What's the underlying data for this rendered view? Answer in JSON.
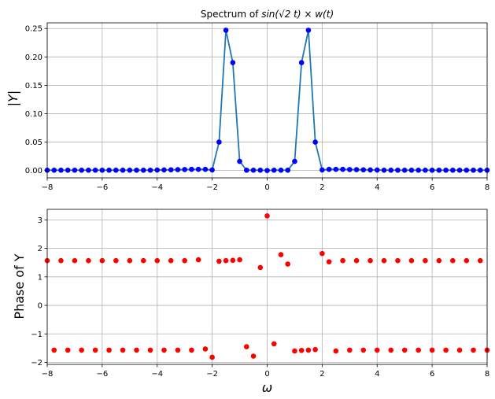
{
  "chart_data": [
    {
      "type": "line",
      "title_prefix": "Spectrum of ",
      "title_math": "sin(√2 t) × w(t)",
      "ylabel": "|Y|",
      "xlabel": "",
      "xlim": [
        -8,
        8
      ],
      "ylim": [
        -0.013,
        0.26
      ],
      "grid": true,
      "xticks": [
        -8,
        -6,
        -4,
        -2,
        0,
        2,
        4,
        6,
        8
      ],
      "xtick_labels": [
        "−8",
        "−6",
        "−4",
        "−2",
        "0",
        "2",
        "4",
        "6",
        "8"
      ],
      "yticks": [
        0.0,
        0.05,
        0.1,
        0.15,
        0.2,
        0.25
      ],
      "ytick_labels": [
        "0.00",
        "0.05",
        "0.10",
        "0.15",
        "0.20",
        "0.25"
      ],
      "series": [
        {
          "line_color": "#1f77b4",
          "marker_color": "#0000ff",
          "x": [
            -8,
            -7.75,
            -7.5,
            -7.25,
            -7,
            -6.75,
            -6.5,
            -6.25,
            -6,
            -5.75,
            -5.5,
            -5.25,
            -5,
            -4.75,
            -4.5,
            -4.25,
            -4,
            -3.75,
            -3.5,
            -3.25,
            -3,
            -2.75,
            -2.5,
            -2.25,
            -2,
            -1.75,
            -1.5,
            -1.25,
            -1,
            -0.75,
            -0.5,
            -0.25,
            0,
            0.25,
            0.5,
            0.75,
            1,
            1.25,
            1.5,
            1.75,
            2,
            2.25,
            2.5,
            2.75,
            3,
            3.25,
            3.5,
            3.75,
            4,
            4.25,
            4.5,
            4.75,
            5,
            5.25,
            5.5,
            5.75,
            6,
            6.25,
            6.5,
            6.75,
            7,
            7.25,
            7.5,
            7.75,
            8
          ],
          "y": [
            0.0005,
            0.0005,
            0.0005,
            0.0005,
            0.0005,
            0.0005,
            0.0005,
            0.0005,
            0.0005,
            0.0005,
            0.0005,
            0.0005,
            0.0005,
            0.0005,
            0.0005,
            0.0005,
            0.0008,
            0.001,
            0.0012,
            0.0015,
            0.0017,
            0.002,
            0.002,
            0.002,
            0.001,
            0.05,
            0.247,
            0.19,
            0.016,
            0.0005,
            0.0005,
            0.0005,
            0.0,
            0.0005,
            0.0005,
            0.0005,
            0.016,
            0.19,
            0.247,
            0.05,
            0.001,
            0.002,
            0.002,
            0.002,
            0.0017,
            0.0015,
            0.0012,
            0.001,
            0.0008,
            0.0005,
            0.0005,
            0.0005,
            0.0005,
            0.0005,
            0.0005,
            0.0005,
            0.0005,
            0.0005,
            0.0005,
            0.0005,
            0.0005,
            0.0005,
            0.0005,
            0.0005,
            0.0005
          ]
        }
      ]
    },
    {
      "type": "scatter",
      "title": "",
      "ylabel": "Phase of Y",
      "xlabel": "ω",
      "xlim": [
        -8,
        8
      ],
      "ylim": [
        -2.07,
        3.37
      ],
      "grid": true,
      "xticks": [
        -8,
        -6,
        -4,
        -2,
        0,
        2,
        4,
        6,
        8
      ],
      "xtick_labels": [
        "−8",
        "−6",
        "−4",
        "−2",
        "0",
        "2",
        "4",
        "6",
        "8"
      ],
      "yticks": [
        -2,
        -1,
        0,
        1,
        2,
        3
      ],
      "ytick_labels": [
        "−2",
        "−1",
        "0",
        "1",
        "2",
        "3"
      ],
      "series": [
        {
          "marker_color": "#ff0000",
          "x": [
            -8,
            -7.75,
            -7.5,
            -7.25,
            -7,
            -6.75,
            -6.5,
            -6.25,
            -6,
            -5.75,
            -5.5,
            -5.25,
            -5,
            -4.75,
            -4.5,
            -4.25,
            -4,
            -3.75,
            -3.5,
            -3.25,
            -3,
            -2.75,
            -2.5,
            -2.25,
            -2,
            -1.75,
            -1.5,
            -1.25,
            -1,
            -0.75,
            -0.5,
            -0.25,
            0,
            0.25,
            0.5,
            0.75,
            1,
            1.25,
            1.5,
            1.75,
            2,
            2.25,
            2.5,
            2.75,
            3,
            3.25,
            3.5,
            3.75,
            4,
            4.25,
            4.5,
            4.75,
            5,
            5.25,
            5.5,
            5.75,
            6,
            6.25,
            6.5,
            6.75,
            7,
            7.25,
            7.5,
            7.75,
            8
          ],
          "y": [
            1.57,
            -1.57,
            1.57,
            -1.57,
            1.57,
            -1.57,
            1.57,
            -1.57,
            1.57,
            -1.57,
            1.57,
            -1.57,
            1.57,
            -1.57,
            1.57,
            -1.57,
            1.57,
            -1.57,
            1.57,
            -1.57,
            1.57,
            -1.57,
            1.6,
            -1.53,
            -1.82,
            1.55,
            1.57,
            1.58,
            1.6,
            -1.45,
            -1.78,
            1.33,
            3.14,
            -1.35,
            1.78,
            1.45,
            -1.6,
            -1.58,
            -1.57,
            -1.55,
            1.82,
            1.53,
            -1.6,
            1.57,
            -1.57,
            1.57,
            -1.57,
            1.57,
            -1.57,
            1.57,
            -1.57,
            1.57,
            -1.57,
            1.57,
            -1.57,
            1.57,
            -1.57,
            1.57,
            -1.57,
            1.57,
            -1.57,
            1.57,
            -1.57,
            1.57,
            -1.57
          ]
        }
      ]
    }
  ]
}
